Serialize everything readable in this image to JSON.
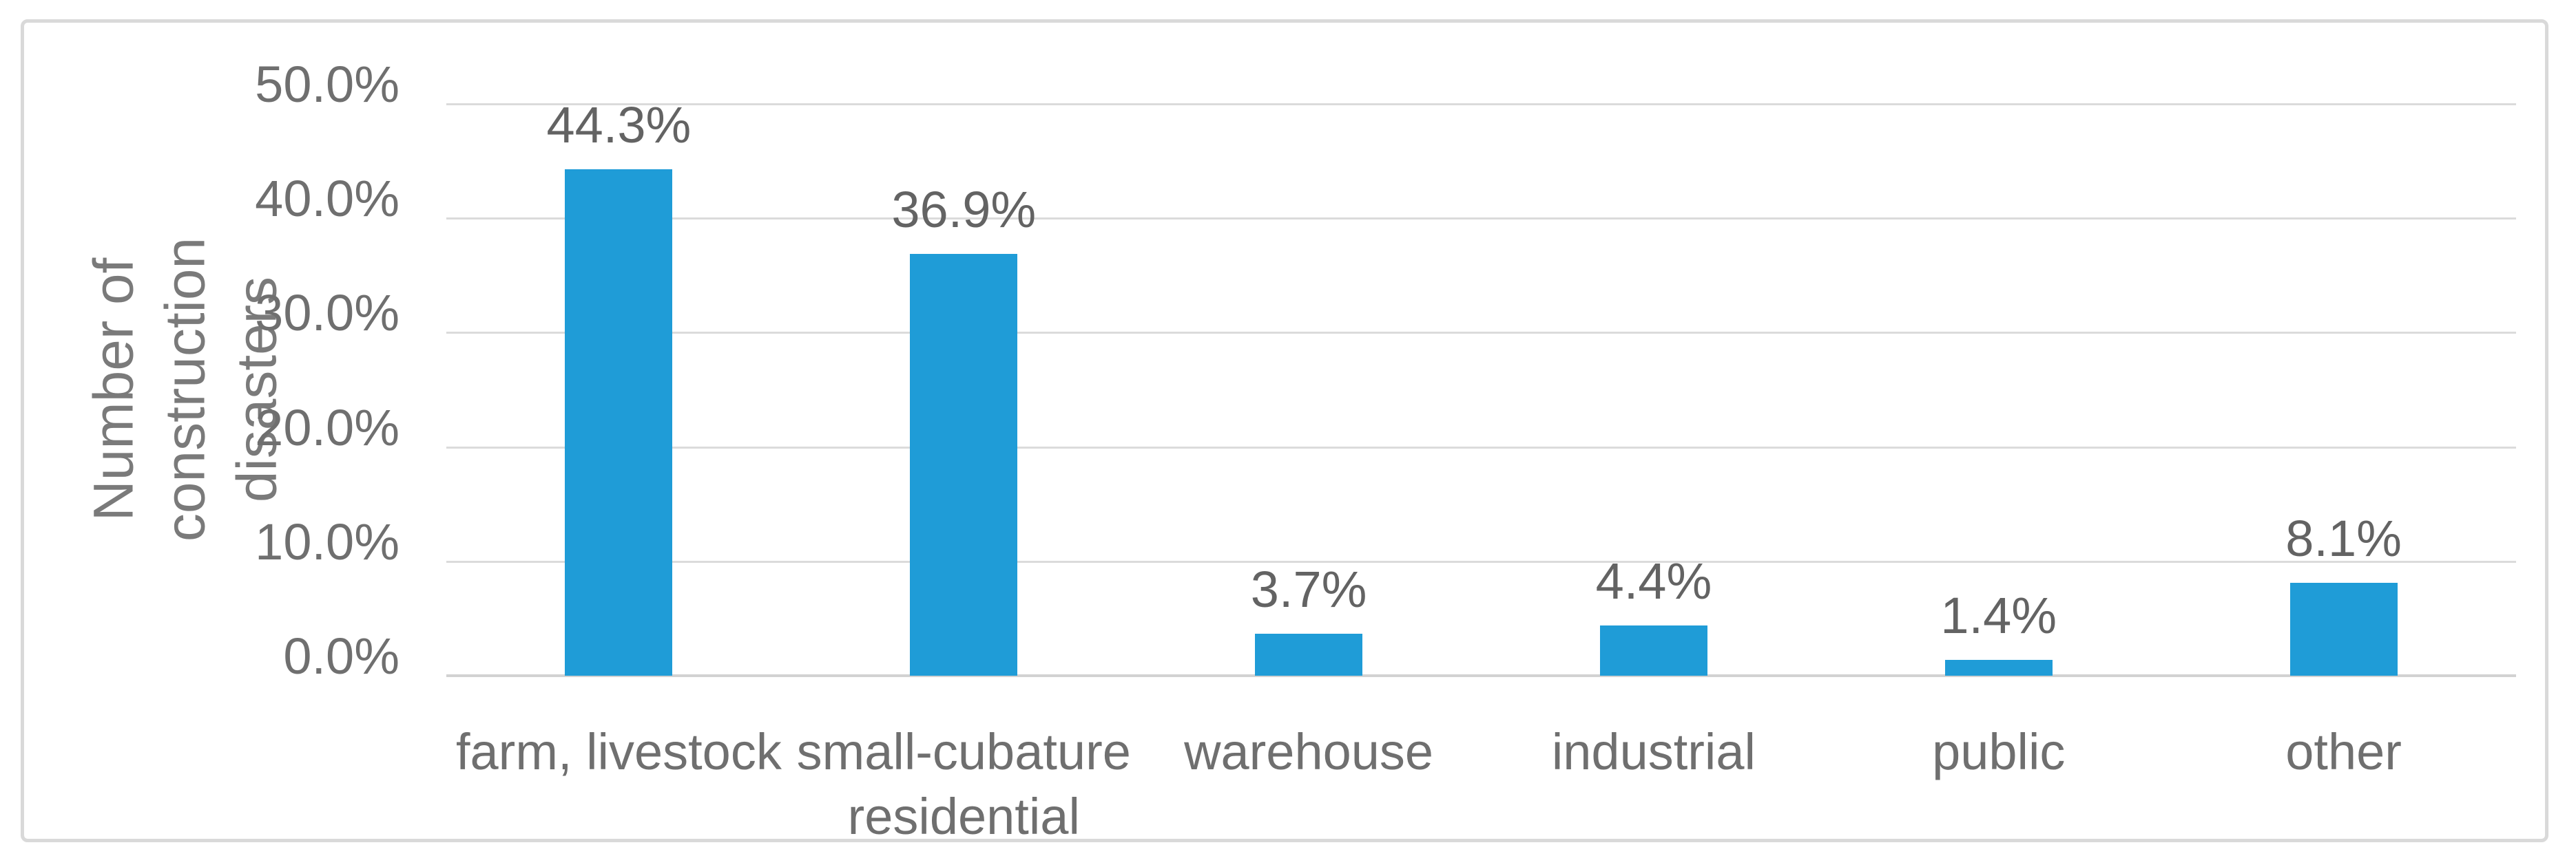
{
  "chart_data": {
    "type": "bar",
    "title": "",
    "xlabel": "",
    "ylabel": "Number of construction\ndisasters",
    "categories": [
      "farm, livestock",
      "small-cubature\nresidential",
      "warehouse",
      "industrial",
      "public",
      "other"
    ],
    "values": [
      44.3,
      36.9,
      3.7,
      4.4,
      1.4,
      8.1
    ],
    "value_labels": [
      "44.3%",
      "36.9%",
      "3.7%",
      "4.4%",
      "1.4%",
      "8.1%"
    ],
    "yticks": [
      "50.0%",
      "40.0%",
      "30.0%",
      "20.0%",
      "10.0%",
      "0.0%"
    ],
    "ylim": [
      0,
      50
    ],
    "grid": "horizontal",
    "legend": "none",
    "colors": {
      "bar": "#1f9cd7",
      "gridline": "#dbdbdb",
      "axis_line": "#d2d2d2",
      "tick_text": "#6f6f6f",
      "label_text": "#636363",
      "frame_border": "#d9d9d9",
      "background": "#ffffff"
    }
  }
}
